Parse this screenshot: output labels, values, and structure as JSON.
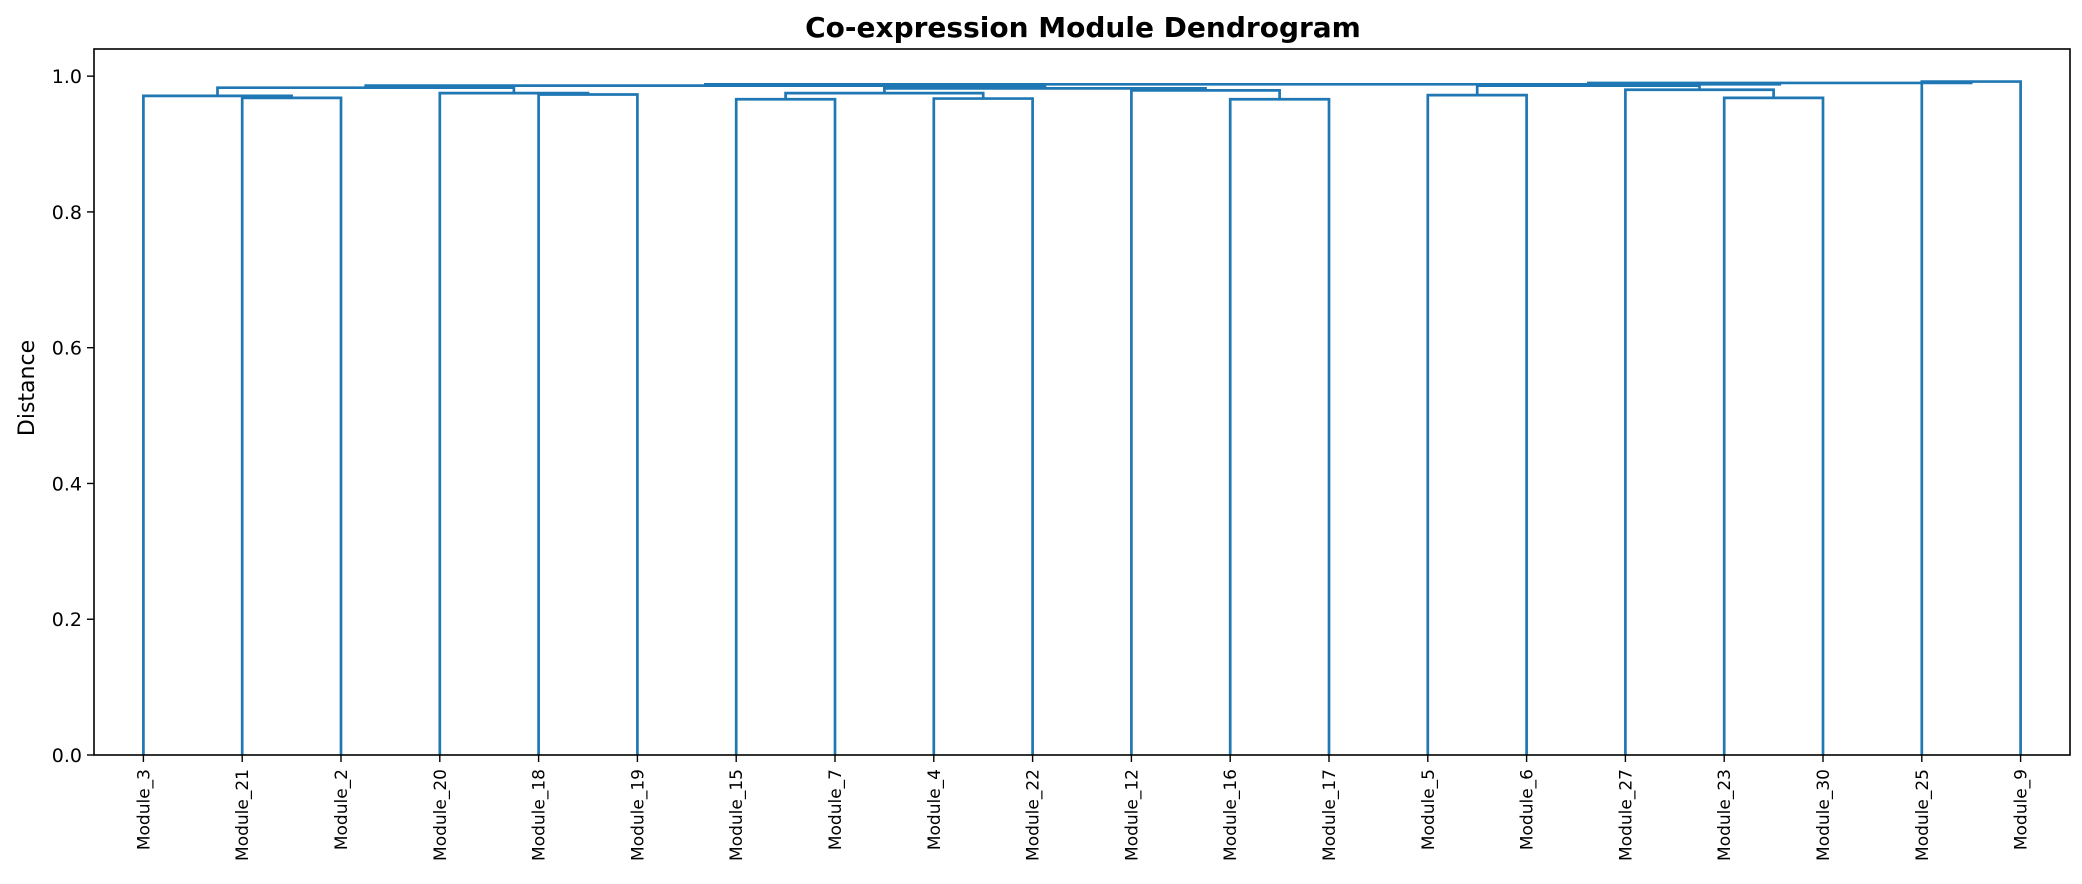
{
  "chart_data": {
    "type": "dendrogram",
    "title": "Co-expression Module Dendrogram",
    "xlabel": "",
    "ylabel": "Distance",
    "ylim": [
      0,
      1.04
    ],
    "yticks": [
      "0.0",
      "0.2",
      "0.4",
      "0.6",
      "0.8",
      "1.0"
    ],
    "grid": false,
    "line_color": "#1f77b4",
    "leaves": [
      "Module_3",
      "Module_21",
      "Module_2",
      "Module_20",
      "Module_18",
      "Module_19",
      "Module_15",
      "Module_7",
      "Module_4",
      "Module_22",
      "Module_12",
      "Module_16",
      "Module_17",
      "Module_5",
      "Module_6",
      "Module_27",
      "Module_23",
      "Module_30",
      "Module_25",
      "Module_9"
    ],
    "merges": [
      {
        "left": "Module_21",
        "right": "Module_2",
        "height": 0.968
      },
      {
        "left": "Module_3",
        "right": "Module_21 + Module_2",
        "height": 0.971
      },
      {
        "left": "Module_18",
        "right": "Module_19",
        "height": 0.973
      },
      {
        "left": "Module_20",
        "right": "Module_18 + Module_19",
        "height": 0.975
      },
      {
        "left": "Module_3 + Module_21 + Module_2",
        "right": "Module_20 + Module_18 + Module_19",
        "height": 0.983
      },
      {
        "left": "Module_15",
        "right": "Module_7",
        "height": 0.966
      },
      {
        "left": "Module_4",
        "right": "Module_22",
        "height": 0.967
      },
      {
        "left": "Module_15 + Module_7",
        "right": "Module_4 + Module_22",
        "height": 0.975
      },
      {
        "left": "Module_16",
        "right": "Module_17",
        "height": 0.966
      },
      {
        "left": "Module_12",
        "right": "Module_16 + Module_17",
        "height": 0.979
      },
      {
        "left": "Module_15 + Module_7 + Module_4 + Module_22",
        "right": "Module_12 + Module_16 + Module_17",
        "height": 0.982
      },
      {
        "left": "Module_3 … Module_19",
        "right": "Module_15 … Module_17",
        "height": 0.986
      },
      {
        "left": "Module_5",
        "right": "Module_6",
        "height": 0.972
      },
      {
        "left": "Module_23",
        "right": "Module_30",
        "height": 0.968
      },
      {
        "left": "Module_27",
        "right": "Module_23 + Module_30",
        "height": 0.98
      },
      {
        "left": "Module_5 + Module_6",
        "right": "Module_27 + Module_23 + Module_30",
        "height": 0.986
      },
      {
        "left": "Module_25",
        "right": "Module_9",
        "height": 0.992
      },
      {
        "left": "Module_5 … Module_30",
        "right": "Module_25 + Module_9",
        "height": 0.99
      },
      {
        "left": "Module_3 … Module_17",
        "right": "Module_5 … Module_9",
        "height": 0.988
      }
    ]
  }
}
